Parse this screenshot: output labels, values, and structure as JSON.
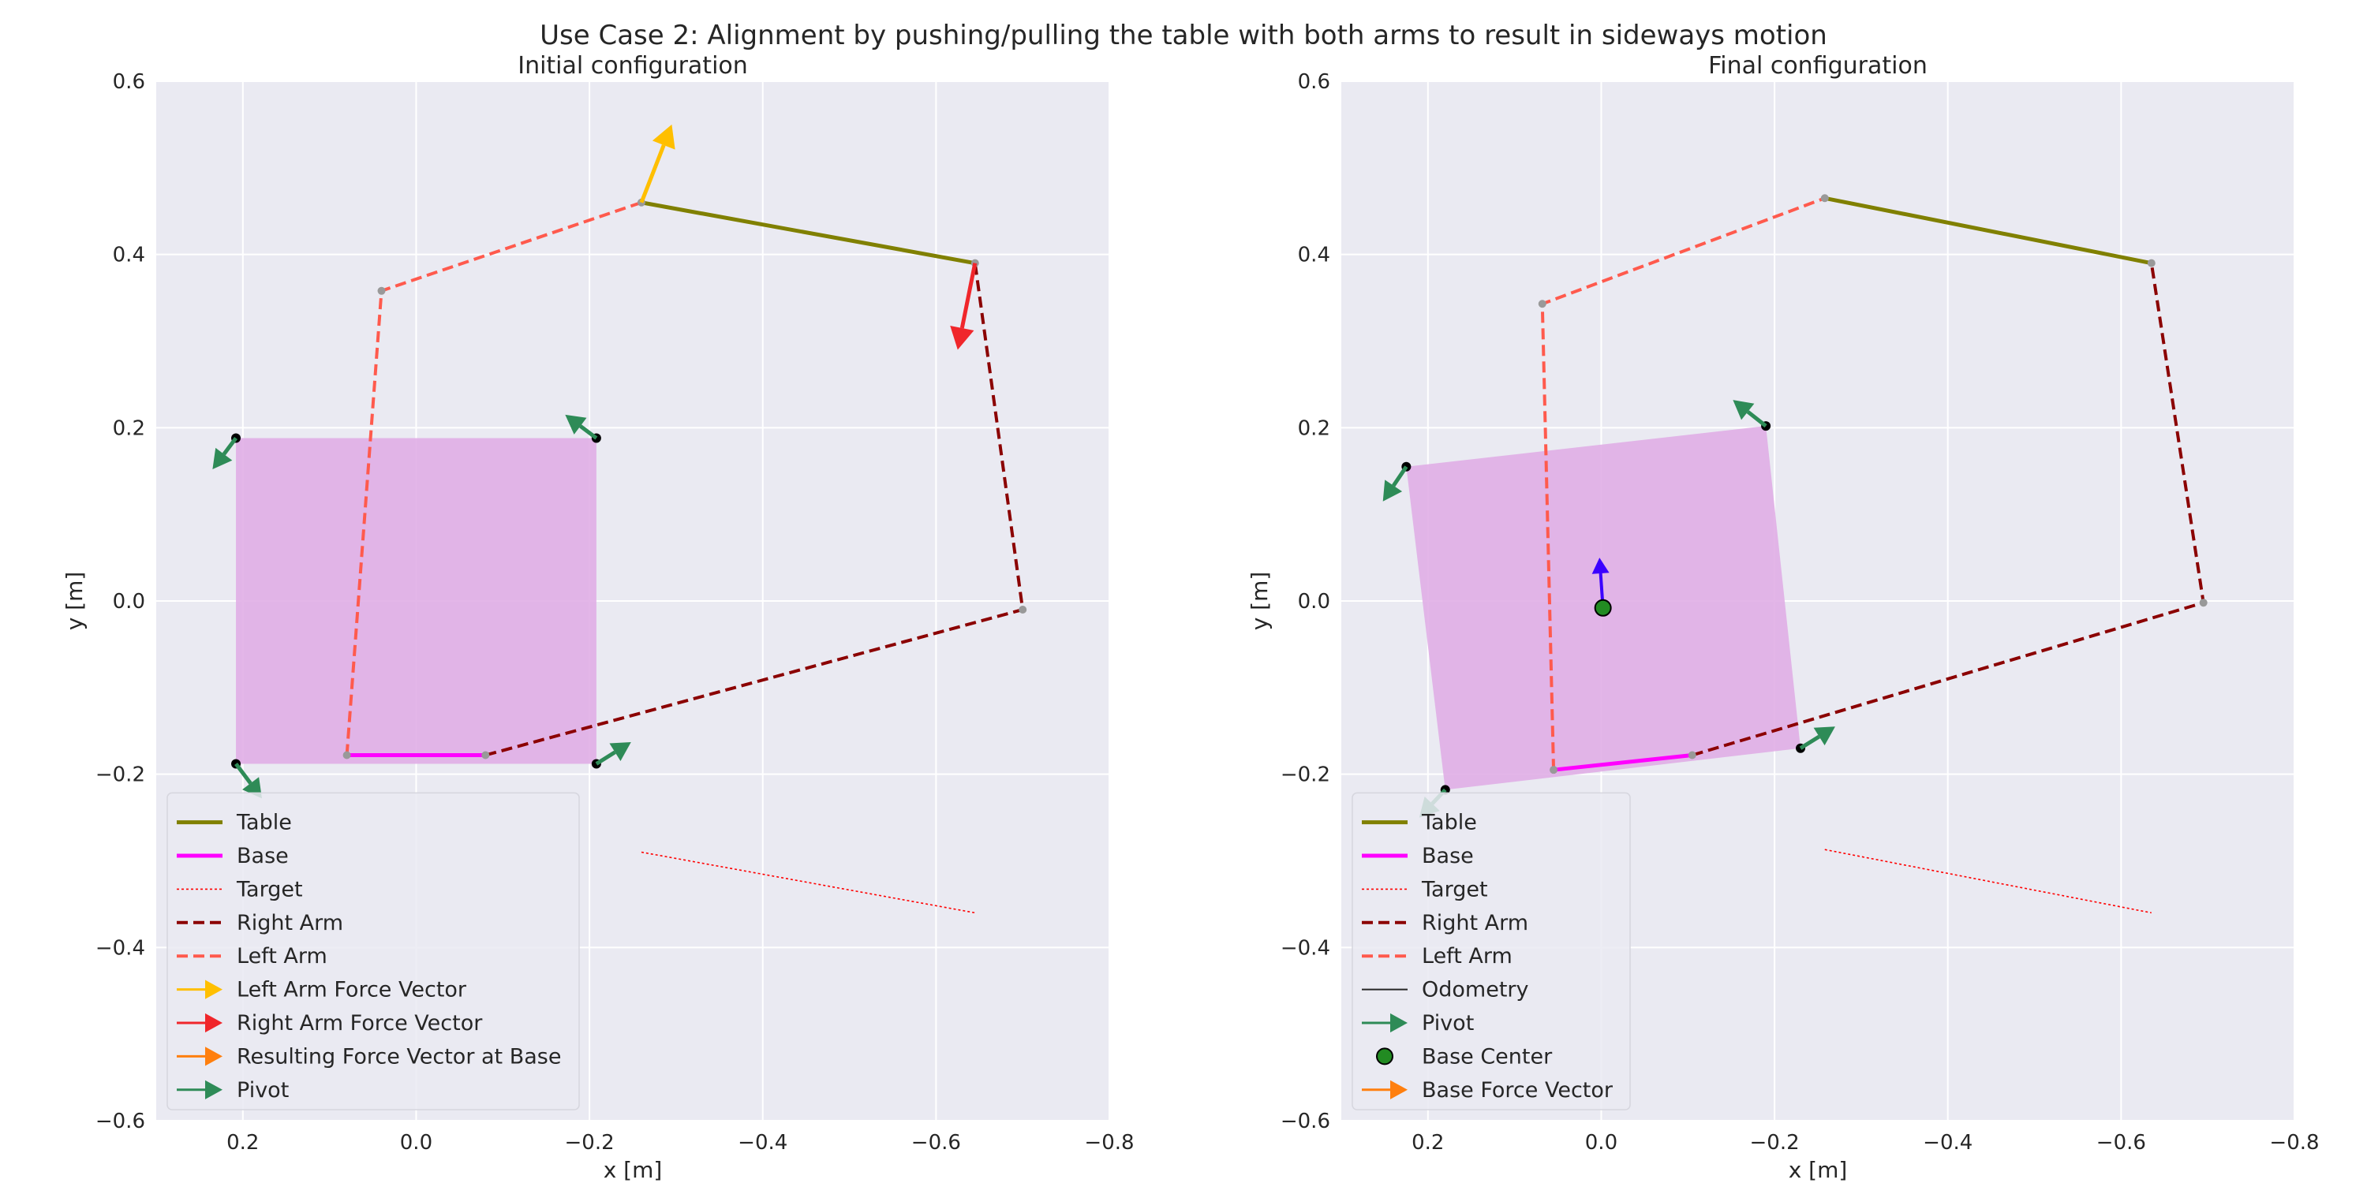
{
  "figure": {
    "title": "Use Case 2: Alignment by pushing/pulling the table with both arms to result in sideways motion"
  },
  "colors": {
    "plot_bg": "#eaeaf2",
    "grid": "#ffffff",
    "table": "#808000",
    "base": "#ff00ff",
    "target": "#ff0000",
    "right_arm": "#8b0000",
    "left_arm": "#ff5a4d",
    "left_force": "#ffbf00",
    "right_force": "#f0262b",
    "base_force": "#ff7f0e",
    "pivot": "#2e8b57",
    "footprint": "#e0aee6",
    "base_center": "#228b22",
    "odometry_arrow": "#3b00ff",
    "text": "#262626"
  },
  "chart_data": [
    {
      "type": "line",
      "title": "Initial configuration",
      "xlabel": "x [m]",
      "ylabel": "y [m]",
      "xlim": [
        0.3,
        -0.8
      ],
      "ylim": [
        -0.6,
        0.6
      ],
      "xticks": [
        0.2,
        0.0,
        -0.2,
        -0.4,
        -0.6,
        -0.8
      ],
      "xtick_labels": [
        "0.2",
        "0.0",
        "−0.2",
        "−0.4",
        "−0.6",
        "−0.8"
      ],
      "yticks": [
        -0.6,
        -0.4,
        -0.2,
        0.0,
        0.2,
        0.4,
        0.6
      ],
      "ytick_labels": [
        "−0.6",
        "−0.4",
        "−0.2",
        "0.0",
        "0.2",
        "0.4",
        "0.6"
      ],
      "grid": true,
      "legend_position": "lower-left",
      "footprint": [
        [
          0.208,
          0.188
        ],
        [
          -0.208,
          0.188
        ],
        [
          -0.208,
          -0.188
        ],
        [
          0.208,
          -0.188
        ]
      ],
      "series": [
        {
          "name": "Table",
          "style": "solid",
          "color_key": "table",
          "points": [
            [
              -0.26,
              0.46
            ],
            [
              -0.645,
              0.39
            ]
          ]
        },
        {
          "name": "Base",
          "style": "solid",
          "color_key": "base",
          "points": [
            [
              0.08,
              -0.178
            ],
            [
              -0.08,
              -0.178
            ]
          ]
        },
        {
          "name": "Target",
          "style": "dotted",
          "color_key": "target",
          "points": [
            [
              -0.26,
              -0.29
            ],
            [
              -0.645,
              -0.36
            ]
          ]
        },
        {
          "name": "Right Arm",
          "style": "dashed",
          "color_key": "right_arm",
          "points": [
            [
              -0.08,
              -0.178
            ],
            [
              -0.7,
              -0.01
            ],
            [
              -0.645,
              0.39
            ]
          ]
        },
        {
          "name": "Left Arm",
          "style": "dashed",
          "color_key": "left_arm",
          "points": [
            [
              0.08,
              -0.178
            ],
            [
              0.04,
              0.358
            ],
            [
              -0.26,
              0.46
            ]
          ]
        }
      ],
      "joints": [
        [
          0.04,
          0.358
        ],
        [
          -0.7,
          -0.01
        ],
        [
          -0.26,
          0.46
        ],
        [
          -0.645,
          0.39
        ],
        [
          0.08,
          -0.178
        ],
        [
          -0.08,
          -0.178
        ]
      ],
      "force_vectors": [
        {
          "name": "Left Arm Force Vector",
          "color_key": "left_force",
          "from": [
            -0.26,
            0.46
          ],
          "to": [
            -0.295,
            0.55
          ]
        },
        {
          "name": "Right Arm Force Vector",
          "color_key": "right_force",
          "from": [
            -0.645,
            0.39
          ],
          "to": [
            -0.625,
            0.29
          ]
        }
      ],
      "pivots": [
        {
          "from": [
            0.208,
            0.188
          ],
          "to": [
            0.235,
            0.152
          ]
        },
        {
          "from": [
            -0.208,
            0.188
          ],
          "to": [
            -0.172,
            0.215
          ]
        },
        {
          "from": [
            0.208,
            -0.188
          ],
          "to": [
            0.178,
            -0.228
          ]
        },
        {
          "from": [
            -0.208,
            -0.188
          ],
          "to": [
            -0.248,
            -0.163
          ]
        }
      ],
      "legend": [
        {
          "label": "Table",
          "kind": "line",
          "style": "solid",
          "color_key": "table"
        },
        {
          "label": "Base",
          "kind": "line",
          "style": "solid",
          "color_key": "base"
        },
        {
          "label": "Target",
          "kind": "line",
          "style": "dotted",
          "color_key": "target"
        },
        {
          "label": "Right Arm",
          "kind": "line",
          "style": "dashed",
          "color_key": "right_arm"
        },
        {
          "label": "Left Arm",
          "kind": "line",
          "style": "dashed",
          "color_key": "left_arm"
        },
        {
          "label": "Left Arm Force Vector",
          "kind": "arrow",
          "color_key": "left_force"
        },
        {
          "label": "Right Arm Force Vector",
          "kind": "arrow",
          "color_key": "right_force"
        },
        {
          "label": "Resulting Force Vector at Base",
          "kind": "arrow",
          "color_key": "base_force"
        },
        {
          "label": "Pivot",
          "kind": "arrow",
          "color_key": "pivot"
        }
      ]
    },
    {
      "type": "line",
      "title": "Final configuration",
      "xlabel": "x [m]",
      "ylabel": "y [m]",
      "xlim": [
        0.3,
        -0.8
      ],
      "ylim": [
        -0.6,
        0.6
      ],
      "xticks": [
        0.2,
        0.0,
        -0.2,
        -0.4,
        -0.6,
        -0.8
      ],
      "xtick_labels": [
        "0.2",
        "0.0",
        "−0.2",
        "−0.4",
        "−0.6",
        "−0.8"
      ],
      "yticks": [
        -0.6,
        -0.4,
        -0.2,
        0.0,
        0.2,
        0.4,
        0.6
      ],
      "ytick_labels": [
        "−0.6",
        "−0.4",
        "−0.2",
        "0.0",
        "0.2",
        "0.4",
        "0.6"
      ],
      "grid": true,
      "legend_position": "lower-left",
      "footprint": [
        [
          0.225,
          0.155
        ],
        [
          -0.19,
          0.202
        ],
        [
          -0.23,
          -0.17
        ],
        [
          0.18,
          -0.218
        ]
      ],
      "series": [
        {
          "name": "Table",
          "style": "solid",
          "color_key": "table",
          "points": [
            [
              -0.258,
              0.465
            ],
            [
              -0.635,
              0.39
            ]
          ]
        },
        {
          "name": "Base",
          "style": "solid",
          "color_key": "base",
          "points": [
            [
              0.055,
              -0.195
            ],
            [
              -0.105,
              -0.178
            ]
          ]
        },
        {
          "name": "Target",
          "style": "dotted",
          "color_key": "target",
          "points": [
            [
              -0.258,
              -0.287
            ],
            [
              -0.635,
              -0.36
            ]
          ]
        },
        {
          "name": "Right Arm",
          "style": "dashed",
          "color_key": "right_arm",
          "points": [
            [
              -0.105,
              -0.178
            ],
            [
              -0.695,
              -0.002
            ],
            [
              -0.635,
              0.39
            ]
          ]
        },
        {
          "name": "Left Arm",
          "style": "dashed",
          "color_key": "left_arm",
          "points": [
            [
              0.055,
              -0.195
            ],
            [
              0.068,
              0.343
            ],
            [
              -0.258,
              0.465
            ]
          ]
        }
      ],
      "joints": [
        [
          0.068,
          0.343
        ],
        [
          -0.695,
          -0.002
        ],
        [
          -0.258,
          0.465
        ],
        [
          -0.635,
          0.39
        ],
        [
          0.055,
          -0.195
        ],
        [
          -0.105,
          -0.178
        ]
      ],
      "odometry_arrow": {
        "from": [
          -0.002,
          -0.008
        ],
        "to": [
          0.002,
          0.05
        ]
      },
      "base_center": [
        -0.002,
        -0.008
      ],
      "pivots": [
        {
          "from": [
            0.225,
            0.155
          ],
          "to": [
            0.252,
            0.115
          ]
        },
        {
          "from": [
            -0.19,
            0.202
          ],
          "to": [
            -0.152,
            0.232
          ]
        },
        {
          "from": [
            -0.23,
            -0.17
          ],
          "to": [
            -0.27,
            -0.145
          ]
        },
        {
          "from": [
            0.18,
            -0.218
          ],
          "to": [
            0.21,
            -0.25
          ]
        }
      ],
      "legend": [
        {
          "label": "Table",
          "kind": "line",
          "style": "solid",
          "color_key": "table"
        },
        {
          "label": "Base",
          "kind": "line",
          "style": "solid",
          "color_key": "base"
        },
        {
          "label": "Target",
          "kind": "line",
          "style": "dotted",
          "color_key": "target"
        },
        {
          "label": "Right Arm",
          "kind": "line",
          "style": "dashed",
          "color_key": "right_arm"
        },
        {
          "label": "Left Arm",
          "kind": "line",
          "style": "dashed",
          "color_key": "left_arm"
        },
        {
          "label": "Odometry",
          "kind": "line",
          "style": "thin",
          "color_key": "text"
        },
        {
          "label": "Pivot",
          "kind": "arrow",
          "color_key": "pivot"
        },
        {
          "label": "Base Center",
          "kind": "marker",
          "color_key": "base_center"
        },
        {
          "label": "Base Force Vector",
          "kind": "arrow",
          "color_key": "base_force"
        }
      ]
    }
  ]
}
